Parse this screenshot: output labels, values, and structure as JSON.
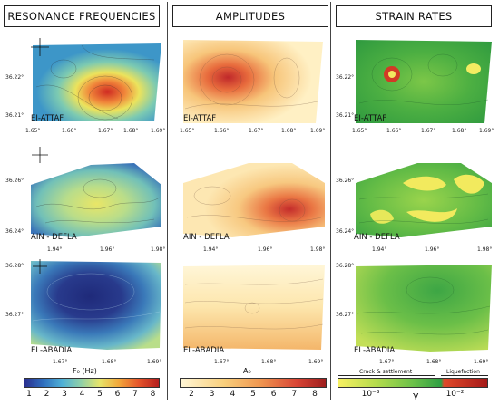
{
  "columns": [
    {
      "title": "RESONANCE FREQUENCIES",
      "cbar_title": "F₀ (Hz)",
      "ticks": [
        "1",
        "2",
        "3",
        "4",
        "5",
        "6",
        "7",
        "8"
      ]
    },
    {
      "title": "AMPLITUDES",
      "cbar_title": "A₀",
      "ticks": [
        "2",
        "3",
        "4",
        "5",
        "6",
        "7",
        "8"
      ]
    },
    {
      "title": "STRAIN RATES",
      "cbar_title": "γ",
      "ticks": [
        "10⁻³",
        "10⁻²"
      ]
    }
  ],
  "sites": [
    {
      "name": "EI-ATTAF",
      "lats": [
        "36.22°",
        "36.21°"
      ],
      "lons": [
        "1.65°",
        "1.66°",
        "1.67°",
        "1.68°",
        "1.69°"
      ]
    },
    {
      "name": "AIN - DEFLA",
      "lats": [
        "36.26°",
        "36.24°"
      ],
      "lons": [
        "1.94°",
        "1.96°",
        "1.98°"
      ]
    },
    {
      "name": "EL-ABADIA",
      "lats": [
        "36.28°",
        "36.27°"
      ],
      "lons": [
        "1.67°",
        "1.68°",
        "1.69°"
      ]
    }
  ],
  "strain_ranges": {
    "crack": "Crack & settlement",
    "liquefaction": "Liquefaction"
  },
  "colors": {
    "freq": [
      "#2a2f8f",
      "#2f6fbf",
      "#4fb0d6",
      "#8fd0a8",
      "#e7e46b",
      "#f2a93b",
      "#e5552b",
      "#b51e1e"
    ],
    "amp": [
      "#fff2c2",
      "#fde6a6",
      "#f9cf7c",
      "#f4ad5b",
      "#ec8446",
      "#e0553a",
      "#c8302d",
      "#9e1e1e"
    ],
    "strain": [
      "#f7f062",
      "#cbe34f",
      "#8fd14b",
      "#4cb848",
      "#2f9f44",
      "#e04a2a",
      "#b01a1a"
    ]
  }
}
